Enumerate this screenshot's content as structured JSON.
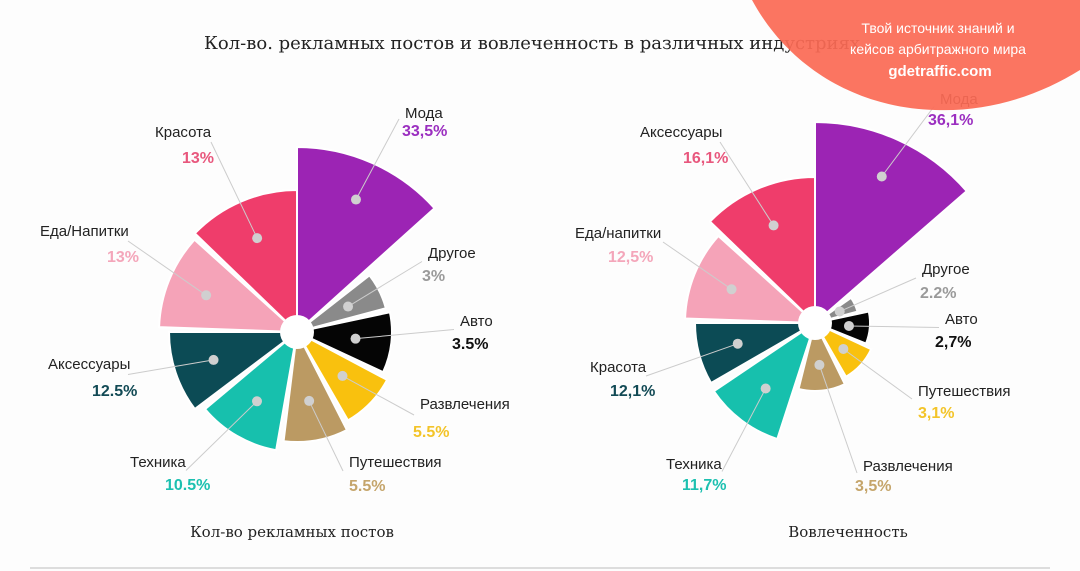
{
  "title": "Кол-во. рекламных постов и вовлеченность в различных индустриях",
  "banner": {
    "line1": "Твой источник знаний и",
    "line2": "кейсов арбитражного мира",
    "site": "gdetraffic.com",
    "color": "#fb6a55"
  },
  "chart_data": [
    {
      "type": "polar-area",
      "subtitle": "Кол-во рекламных постов",
      "categories": [
        "Мода",
        "Другое",
        "Авто",
        "Развлечения",
        "Путешествия",
        "Техника",
        "Аксессуары",
        "Еда/Напитки",
        "Красота"
      ],
      "values": [
        33.5,
        3,
        3.5,
        5.5,
        5.5,
        10.5,
        12.5,
        13,
        13
      ],
      "value_labels": [
        "33,5%",
        "3%",
        "3.5%",
        "5.5%",
        "5.5%",
        "10.5%",
        "12.5%",
        "13%",
        "13%"
      ],
      "colors": [
        "#9c24b4",
        "#8a8a8a",
        "#050505",
        "#f9c10e",
        "#bb9a63",
        "#17c0ad",
        "#0c4b55",
        "#f5a3b8",
        "#ef3d6b"
      ],
      "label_colors": [
        "#9b2fc0",
        "#9a9a9a",
        "#111111",
        "#f3c429",
        "#c5a56b",
        "#1cc0b0",
        "#124a55",
        "#f4a6ba",
        "#e8577d"
      ]
    },
    {
      "type": "polar-area",
      "subtitle": "Вовлеченность",
      "categories": [
        "Мода",
        "Другое",
        "Авто",
        "Путешествия",
        "Развлечения",
        "Техника",
        "Красота",
        "Еда/напитки",
        "Аксессуары"
      ],
      "values": [
        36.1,
        2.2,
        2.7,
        3.1,
        3.5,
        11.7,
        12.1,
        12.5,
        16.1
      ],
      "value_labels": [
        "36,1%",
        "2.2%",
        "2,7%",
        "3,1%",
        "3,5%",
        "11,7%",
        "12,1%",
        "12,5%",
        "16,1%"
      ],
      "colors": [
        "#9c24b4",
        "#8a8a8a",
        "#050505",
        "#f9c10e",
        "#bb9a63",
        "#17c0ad",
        "#0c4b55",
        "#f5a3b8",
        "#ef3d6b"
      ],
      "label_colors": [
        "#9b2fc0",
        "#9a9a9a",
        "#111111",
        "#f3c429",
        "#c5a56b",
        "#1cc0b0",
        "#124a55",
        "#f4a6ba",
        "#e8577d"
      ]
    }
  ]
}
